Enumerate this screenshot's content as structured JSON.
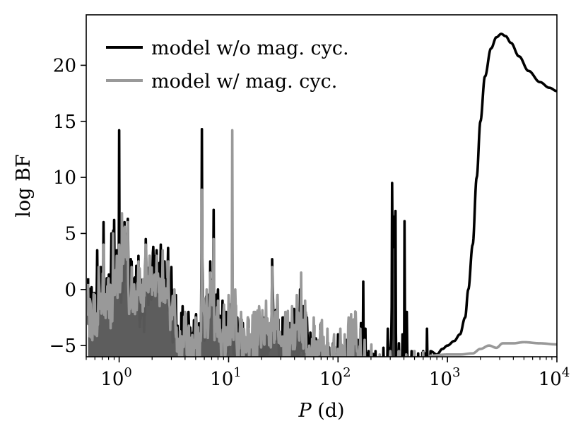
{
  "chart_data": {
    "type": "line",
    "title": "",
    "xlabel_var": "P",
    "xlabel_unit": " (d)",
    "ylabel": "log BF",
    "xscale": "log",
    "xlim": [
      0.5,
      10000
    ],
    "ylim": [
      -6,
      24.5
    ],
    "grid": false,
    "legend_position": "top-left",
    "x_ticks": [
      {
        "base": "10",
        "exp": "0",
        "value": 1
      },
      {
        "base": "10",
        "exp": "1",
        "value": 10
      },
      {
        "base": "10",
        "exp": "2",
        "value": 100
      },
      {
        "base": "10",
        "exp": "3",
        "value": 1000
      },
      {
        "base": "10",
        "exp": "4",
        "value": 10000
      }
    ],
    "y_ticks": [
      {
        "label": "−5",
        "value": -5
      },
      {
        "label": "0",
        "value": 0
      },
      {
        "label": "5",
        "value": 5
      },
      {
        "label": "10",
        "value": 10
      },
      {
        "label": "15",
        "value": 15
      },
      {
        "label": "20",
        "value": 20
      }
    ],
    "series": [
      {
        "name": "model w/o mag. cyc.",
        "color": "#000000",
        "peaks": [
          [
            0.52,
            1.0
          ],
          [
            0.56,
            0.2
          ],
          [
            0.63,
            3.5
          ],
          [
            0.68,
            2.0
          ],
          [
            0.72,
            6.0
          ],
          [
            0.77,
            1.0
          ],
          [
            0.85,
            5.0
          ],
          [
            0.9,
            6.2
          ],
          [
            0.95,
            3.5
          ],
          [
            1.0,
            14.2
          ],
          [
            1.06,
            2.5
          ],
          [
            1.12,
            6.0
          ],
          [
            1.2,
            6.3
          ],
          [
            1.3,
            2.5
          ],
          [
            1.5,
            3.0
          ],
          [
            1.6,
            0.5
          ],
          [
            1.75,
            4.5
          ],
          [
            1.9,
            3.0
          ],
          [
            2.05,
            3.8
          ],
          [
            2.2,
            3.5
          ],
          [
            2.4,
            4.0
          ],
          [
            2.6,
            2.5
          ],
          [
            2.8,
            3.7
          ],
          [
            3.0,
            2.0
          ],
          [
            3.3,
            -0.5
          ],
          [
            3.8,
            -1.5
          ],
          [
            4.3,
            -2.0
          ],
          [
            5.0,
            -2.5
          ],
          [
            5.7,
            14.3
          ],
          [
            6.3,
            -0.5
          ],
          [
            6.8,
            2.5
          ],
          [
            7.3,
            7.1
          ],
          [
            8.0,
            0.0
          ],
          [
            8.8,
            -1.0
          ],
          [
            9.5,
            -2.0
          ],
          [
            10.3,
            -1.5
          ],
          [
            10.8,
            4.0
          ],
          [
            12.0,
            -2.5
          ],
          [
            13.5,
            -3.0
          ],
          [
            15.0,
            -2.5
          ],
          [
            17.0,
            -3.0
          ],
          [
            19.0,
            -2.5
          ],
          [
            22.0,
            -2.0
          ],
          [
            25.0,
            2.7
          ],
          [
            28.0,
            -0.5
          ],
          [
            32.0,
            -2.5
          ],
          [
            36.0,
            -3.0
          ],
          [
            40.0,
            -2.0
          ],
          [
            45.0,
            0.0
          ],
          [
            48.0,
            -1.5
          ],
          [
            52.0,
            -2.5
          ],
          [
            60.0,
            -3.5
          ],
          [
            70.0,
            -3.0
          ],
          [
            80.0,
            -4.5
          ],
          [
            90.0,
            -4.8
          ],
          [
            100.0,
            -4.0
          ],
          [
            120.0,
            -4.5
          ],
          [
            140.0,
            -5.0
          ],
          [
            152.0,
            -4.5
          ],
          [
            162.0,
            -3.0
          ],
          [
            170.0,
            0.7
          ],
          [
            178.0,
            -3.5
          ],
          [
            190.0,
            -5.5
          ],
          [
            220.0,
            -5.5
          ],
          [
            260.0,
            -5.2
          ],
          [
            285.0,
            -3.5
          ],
          [
            312.0,
            9.5
          ],
          [
            335.0,
            7.0
          ],
          [
            360.0,
            -4.8
          ],
          [
            388.0,
            -4.0
          ],
          [
            405.0,
            6.1
          ],
          [
            425.0,
            -2.0
          ],
          [
            470.0,
            -5.5
          ],
          [
            540.0,
            -5.7
          ],
          [
            600.0,
            -5.5
          ],
          [
            650.0,
            -3.5
          ],
          [
            700.0,
            -5.5
          ],
          [
            800.0,
            -5.8
          ],
          [
            900.0,
            -5.3
          ],
          [
            1000.0,
            -5.0
          ],
          [
            1150.0,
            -4.6
          ],
          [
            1300.0,
            -4.0
          ],
          [
            1450.0,
            -2.5
          ],
          [
            1550.0,
            0.0
          ],
          [
            1700.0,
            4.0
          ],
          [
            1850.0,
            10.0
          ],
          [
            2000.0,
            15.0
          ],
          [
            2200.0,
            19.0
          ],
          [
            2500.0,
            21.5
          ],
          [
            2800.0,
            22.5
          ],
          [
            3100.0,
            22.8
          ],
          [
            3400.0,
            22.6
          ],
          [
            3800.0,
            22.0
          ],
          [
            4500.0,
            20.8
          ],
          [
            5500.0,
            19.5
          ],
          [
            7000.0,
            18.5
          ],
          [
            8500.0,
            18.0
          ],
          [
            10000.0,
            17.7
          ]
        ]
      },
      {
        "name": "model w/ mag. cyc.",
        "color": "#999999",
        "peaks": [
          [
            0.52,
            0.5
          ],
          [
            0.6,
            -0.5
          ],
          [
            0.65,
            2.0
          ],
          [
            0.72,
            4.0
          ],
          [
            0.8,
            1.0
          ],
          [
            0.88,
            5.0
          ],
          [
            0.95,
            3.0
          ],
          [
            1.0,
            4.0
          ],
          [
            1.06,
            6.8
          ],
          [
            1.12,
            5.5
          ],
          [
            1.2,
            6.0
          ],
          [
            1.3,
            2.0
          ],
          [
            1.5,
            2.5
          ],
          [
            1.75,
            4.0
          ],
          [
            1.9,
            3.0
          ],
          [
            2.2,
            3.0
          ],
          [
            2.5,
            3.5
          ],
          [
            2.8,
            2.5
          ],
          [
            3.2,
            0.0
          ],
          [
            4.0,
            -2.0
          ],
          [
            5.0,
            -2.5
          ],
          [
            5.7,
            8.9
          ],
          [
            6.3,
            0.0
          ],
          [
            6.8,
            1.5
          ],
          [
            7.3,
            4.5
          ],
          [
            8.0,
            -1.0
          ],
          [
            9.0,
            -2.0
          ],
          [
            10.0,
            -0.5
          ],
          [
            10.8,
            14.2
          ],
          [
            11.5,
            0.0
          ],
          [
            13.0,
            -2.0
          ],
          [
            15.0,
            -2.5
          ],
          [
            17.0,
            -2.0
          ],
          [
            19.0,
            -1.5
          ],
          [
            22.0,
            -1.0
          ],
          [
            25.0,
            2.0
          ],
          [
            28.0,
            -0.5
          ],
          [
            33.0,
            -2.0
          ],
          [
            38.0,
            -1.5
          ],
          [
            42.0,
            -0.5
          ],
          [
            46.0,
            1.5
          ],
          [
            50.0,
            -1.0
          ],
          [
            60.0,
            -2.5
          ],
          [
            70.0,
            -3.0
          ],
          [
            80.0,
            -3.5
          ],
          [
            92.0,
            -4.0
          ],
          [
            105.0,
            -3.5
          ],
          [
            115.0,
            -4.0
          ],
          [
            125.0,
            -2.5
          ],
          [
            145.0,
            -2.0
          ],
          [
            160.0,
            -3.5
          ],
          [
            175.0,
            -4.5
          ],
          [
            200.0,
            -5.7
          ],
          [
            240.0,
            -5.8
          ],
          [
            300.0,
            -5.5
          ],
          [
            360.0,
            -5.5
          ],
          [
            420.0,
            -5.8
          ],
          [
            500.0,
            -5.5
          ],
          [
            600.0,
            -5.6
          ],
          [
            700.0,
            -5.9
          ],
          [
            1000.0,
            -5.8
          ],
          [
            1300.0,
            -5.8
          ],
          [
            1700.0,
            -5.7
          ],
          [
            2000.0,
            -5.3
          ],
          [
            2400.0,
            -5.0
          ],
          [
            2800.0,
            -5.2
          ],
          [
            3200.0,
            -4.8
          ],
          [
            4000.0,
            -4.8
          ],
          [
            5000.0,
            -4.7
          ],
          [
            7000.0,
            -4.8
          ],
          [
            10000.0,
            -4.9
          ]
        ]
      }
    ],
    "overlap_color": "#606060"
  }
}
